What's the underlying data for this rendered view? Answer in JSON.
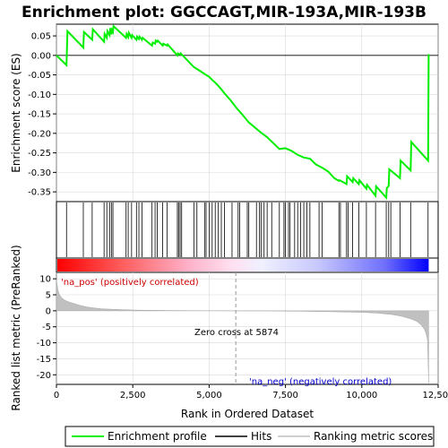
{
  "chart_data": {
    "type": "line",
    "title": "Enrichment plot: GGCCAGT,MIR-193A,MIR-193B",
    "top_panel": {
      "ylabel": "Enrichment score (ES)",
      "ylim": [
        -0.375,
        0.08
      ],
      "yticks": [
        0.05,
        0.0,
        -0.05,
        -0.1,
        -0.15,
        -0.2,
        -0.25,
        -0.3,
        -0.35
      ],
      "ytick_labels": [
        "0.05",
        "0.00",
        "-0.05",
        "-0.10",
        "-0.15",
        "-0.20",
        "-0.25",
        "-0.30",
        "-0.35"
      ],
      "series": [
        {
          "name": "Enrichment profile",
          "color": "#00ee00",
          "x": [
            0,
            330,
            360,
            880,
            900,
            1170,
            1190,
            1560,
            1580,
            1650,
            1670,
            1740,
            1760,
            1800,
            1820,
            1850,
            1870,
            2280,
            2300,
            2350,
            2370,
            2460,
            2480,
            2620,
            2640,
            2700,
            2720,
            2800,
            2820,
            3130,
            3150,
            3230,
            3250,
            3300,
            3320,
            3480,
            3500,
            3620,
            3640,
            3960,
            3980,
            4050,
            4070,
            4500,
            4600,
            4900,
            5000,
            5100,
            5200,
            5300,
            5400,
            5500,
            5700,
            5900,
            6100,
            6300,
            6500,
            6700,
            6900,
            7100,
            7300,
            7500,
            7700,
            7900,
            8100,
            8300,
            8500,
            8700,
            8900,
            9100,
            9250,
            9270,
            9500,
            9520,
            9700,
            9720,
            9900,
            9920,
            10150,
            10170,
            10450,
            10470,
            10800,
            10820,
            10880,
            10900,
            11250,
            11270,
            11600,
            11620,
            12170,
            12190
          ],
          "y": [
            0.0,
            -0.025,
            0.062,
            0.02,
            0.06,
            0.04,
            0.067,
            0.035,
            0.055,
            0.045,
            0.062,
            0.052,
            0.07,
            0.054,
            0.065,
            0.06,
            0.075,
            0.045,
            0.055,
            0.047,
            0.058,
            0.045,
            0.052,
            0.04,
            0.048,
            0.042,
            0.048,
            0.04,
            0.045,
            0.025,
            0.033,
            0.03,
            0.038,
            0.035,
            0.038,
            0.025,
            0.03,
            0.025,
            0.028,
            0.0,
            0.005,
            0.002,
            0.005,
            -0.03,
            -0.035,
            -0.05,
            -0.055,
            -0.063,
            -0.07,
            -0.078,
            -0.087,
            -0.097,
            -0.115,
            -0.135,
            -0.153,
            -0.172,
            -0.185,
            -0.198,
            -0.21,
            -0.225,
            -0.24,
            -0.238,
            -0.245,
            -0.255,
            -0.262,
            -0.265,
            -0.28,
            -0.288,
            -0.298,
            -0.315,
            -0.322,
            -0.32,
            -0.33,
            -0.31,
            -0.325,
            -0.315,
            -0.33,
            -0.32,
            -0.342,
            -0.332,
            -0.36,
            -0.336,
            -0.365,
            -0.34,
            -0.335,
            -0.292,
            -0.315,
            -0.27,
            -0.295,
            -0.222,
            -0.27,
            0.003
          ]
        }
      ]
    },
    "hits_panel": {
      "hit_positions": [
        330,
        880,
        1170,
        1560,
        1650,
        1740,
        1800,
        1850,
        2280,
        2350,
        2460,
        2620,
        2700,
        2800,
        3130,
        3230,
        3300,
        3480,
        3620,
        3960,
        4000,
        4050,
        4100,
        4500,
        4600,
        4850,
        4900,
        5000,
        5100,
        5200,
        5300,
        5400,
        5500,
        5750,
        5950,
        6000,
        6250,
        6300,
        6550,
        6650,
        6700,
        6800,
        6900,
        7050,
        7300,
        7450,
        7500,
        7600,
        7650,
        7800,
        7900,
        8000,
        8100,
        8200,
        8300,
        8600,
        8700,
        9250,
        9300,
        9500,
        9550,
        9700,
        9900,
        10150,
        10450,
        10800,
        10880,
        10950,
        11250,
        11600,
        12170
      ]
    },
    "bottom_panel": {
      "ylabel": "Ranked list metric (PreRanked)",
      "xlabel": "Rank in Ordered Dataset",
      "xlim": [
        0,
        12500
      ],
      "ylim": [
        -23,
        12
      ],
      "xticks": [
        0,
        2500,
        5000,
        7500,
        10000,
        12500
      ],
      "xtick_labels": [
        "0",
        "2,500",
        "5,000",
        "7,500",
        "10,000",
        "12,500"
      ],
      "yticks": [
        10,
        5,
        0,
        -5,
        -10,
        -15,
        -20
      ],
      "ytick_labels": [
        "10",
        "5",
        "0",
        "-5",
        "-10",
        "-15",
        "-20"
      ],
      "metric_x": [
        0,
        50,
        100,
        200,
        300,
        400,
        600,
        800,
        1000,
        1200,
        1500,
        2000,
        2500,
        3000,
        4000,
        5000,
        5874,
        7000,
        8000,
        9000,
        10000,
        10500,
        11000,
        11300,
        11600,
        11800,
        11950,
        12050,
        12100,
        12150,
        12190
      ],
      "metric_y": [
        9.5,
        6.5,
        5.0,
        3.8,
        3.2,
        2.8,
        2.2,
        1.6,
        1.2,
        0.9,
        0.6,
        0.4,
        0.25,
        0.15,
        0.08,
        0.03,
        0.0,
        -0.05,
        -0.15,
        -0.3,
        -0.5,
        -0.7,
        -1.2,
        -1.7,
        -2.5,
        -3.3,
        -4.5,
        -5.8,
        -7.0,
        -9.0,
        -22.5
      ],
      "zero_cross_rank": 5874,
      "zero_cross_label": "Zero cross at 5874",
      "pos_label": "'na_pos' (positively correlated)",
      "neg_label": "'na_neg' (negatively correlated)"
    },
    "legend": {
      "placement": "bottom",
      "items": [
        {
          "label": "Enrichment profile",
          "kind": "line",
          "color": "#00ee00"
        },
        {
          "label": "Hits",
          "kind": "line",
          "color": "#000000"
        },
        {
          "label": "Ranking metric scores",
          "kind": "line",
          "color": "#c0c0c0"
        }
      ]
    }
  },
  "colors": {
    "enrichment_line": "#00ee00",
    "hit_line": "#000000",
    "metric_fill": "#c0c0c0",
    "pos_label": "#cc0000",
    "neg_label": "#0000cc",
    "grid": "#d8d8d8"
  }
}
